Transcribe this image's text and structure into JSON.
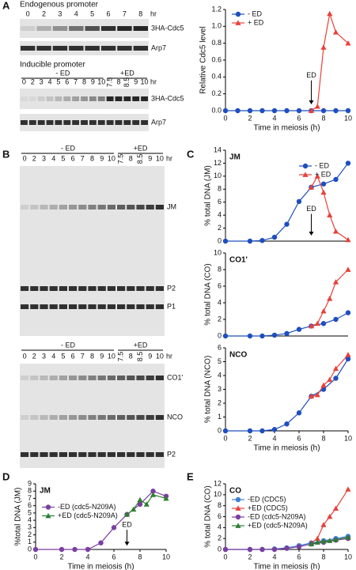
{
  "figure": {
    "panels": [
      "A",
      "B",
      "C",
      "D",
      "E"
    ],
    "gels": [
      {
        "header": "Endogenous promoter",
        "lanes": [
          "0",
          "2",
          "3",
          "4",
          "5",
          "6",
          "7",
          "8"
        ],
        "unit": "hr",
        "labels": [
          "3HA-Cdc5",
          "Arp7"
        ]
      },
      {
        "header": "Inducible promoter",
        "groups": [
          "- ED",
          "+ED"
        ],
        "lanes": [
          "0",
          "2",
          "3",
          "4",
          "5",
          "6",
          "7",
          "8",
          "9",
          "10",
          "7.5",
          "8",
          "8.5",
          "9",
          "10"
        ],
        "unit": "hr",
        "labels": [
          "3HA-Cdc5",
          "Arp7"
        ]
      },
      {
        "groups": [
          "- ED",
          "+ED"
        ],
        "lanes": [
          "0",
          "2",
          "3",
          "4",
          "5",
          "6",
          "7",
          "8",
          "9",
          "10",
          "7.5",
          "8",
          "8.5",
          "9",
          "10"
        ],
        "unit": "hr",
        "labels": [
          "JM",
          "P2",
          "P1"
        ]
      },
      {
        "groups": [
          "- ED",
          "+ED"
        ],
        "lanes": [
          "0",
          "2",
          "3",
          "4",
          "5",
          "6",
          "7",
          "8",
          "9",
          "10",
          "7.5",
          "8",
          "8.5",
          "9",
          "10"
        ],
        "unit": "hr",
        "labels": [
          "CO1'",
          "NCO",
          "P2"
        ]
      }
    ]
  },
  "chart_data": [
    {
      "type": "line",
      "ylabel": "Relative Cdc5 level",
      "xlabel": "Time in meiosis (h)",
      "xlim": [
        0,
        10
      ],
      "xticks": [
        0,
        2,
        4,
        6,
        8,
        10
      ],
      "ylim": [
        0,
        1.2
      ],
      "yticks": [
        {
          "value": 0,
          "label": "0.0"
        },
        {
          "value": 0.2,
          "label": "0.2"
        },
        {
          "value": 0.4,
          "label": "0.4"
        },
        {
          "value": 0.6,
          "label": "0.6"
        },
        {
          "value": 0.8,
          "label": "0.8"
        },
        {
          "value": 1.0,
          "label": "1.0"
        },
        {
          "value": 1.2,
          "label": "1.2"
        }
      ],
      "legend": "upper left",
      "annotation": {
        "text": "ED",
        "x": 7
      },
      "series": [
        {
          "name": "- ED",
          "color": "#1f4fbf",
          "marker": "circle",
          "x": [
            0,
            1,
            2,
            3,
            4,
            5,
            6,
            7,
            8,
            9,
            10
          ],
          "values": [
            0,
            0,
            0,
            0,
            0,
            0,
            0,
            0,
            0,
            0,
            0
          ]
        },
        {
          "name": "+ ED",
          "color": "#e8413a",
          "marker": "triangle",
          "x": [
            7,
            7.5,
            8,
            8.5,
            9,
            10
          ],
          "values": [
            0,
            0.05,
            0.75,
            1.15,
            0.93,
            0.8
          ]
        }
      ]
    },
    {
      "type": "line",
      "title": "JM",
      "ylabel": "% total DNA (JM)",
      "xlim": [
        0,
        10
      ],
      "ylim": [
        0,
        14
      ],
      "yticks": [
        0,
        2,
        4,
        6,
        8,
        10,
        12,
        14
      ],
      "legend": "upper right",
      "annotation": {
        "text": "ED",
        "x": 7
      },
      "series": [
        {
          "name": "- ED",
          "color": "#1f4fbf",
          "marker": "circle",
          "x": [
            0,
            2,
            3,
            4,
            5,
            6,
            7,
            8,
            9,
            10
          ],
          "values": [
            0,
            0,
            0.1,
            0.6,
            2.6,
            6.1,
            8.3,
            8.8,
            9.5,
            12
          ]
        },
        {
          "name": "+ ED",
          "color": "#e8413a",
          "marker": "triangle",
          "x": [
            7,
            7.5,
            8,
            8.5,
            9,
            10
          ],
          "values": [
            8.3,
            10,
            7.5,
            4,
            1.5,
            0.2
          ]
        }
      ]
    },
    {
      "type": "line",
      "title": "CO1'",
      "ylabel": "% total DNA (CO)",
      "xlim": [
        0,
        10
      ],
      "ylim": [
        0,
        10
      ],
      "yticks": [
        0,
        2,
        4,
        6,
        8,
        10
      ],
      "series": [
        {
          "color": "#1f4fbf",
          "marker": "circle",
          "x": [
            0,
            2,
            3,
            4,
            5,
            6,
            7,
            8,
            9,
            10
          ],
          "values": [
            0,
            0,
            0,
            0.1,
            0.3,
            0.8,
            1.2,
            1.5,
            2,
            2.8
          ]
        },
        {
          "color": "#e8413a",
          "marker": "triangle",
          "x": [
            7,
            7.5,
            8,
            8.5,
            9,
            10
          ],
          "values": [
            1.2,
            1.5,
            3,
            4.5,
            6.5,
            8
          ]
        }
      ]
    },
    {
      "type": "line",
      "title": "NCO",
      "ylabel": "% total DNA (NCO)",
      "xlabel": "Time in meiosis (h)",
      "xlim": [
        0,
        10
      ],
      "xticks": [
        0,
        2,
        4,
        6,
        8,
        10
      ],
      "ylim": [
        0,
        6
      ],
      "yticks": [
        0,
        1,
        2,
        3,
        4,
        5,
        6
      ],
      "series": [
        {
          "color": "#1f4fbf",
          "marker": "circle",
          "x": [
            0,
            2,
            3,
            4,
            5,
            6,
            7,
            8,
            9,
            10
          ],
          "values": [
            0,
            0,
            0,
            0.1,
            0.5,
            1.3,
            2.5,
            3,
            3.8,
            5.2
          ]
        },
        {
          "color": "#e8413a",
          "marker": "triangle",
          "x": [
            7,
            7.5,
            8,
            8.5,
            9,
            10
          ],
          "values": [
            2.5,
            2.6,
            3.3,
            3.7,
            4.5,
            5.5
          ]
        }
      ]
    },
    {
      "type": "line",
      "title": "JM",
      "ylabel": "%total DNA (JM)",
      "xlabel": "Time in meiosis (h)",
      "xlim": [
        0,
        10
      ],
      "xticks": [
        0,
        2,
        4,
        6,
        8,
        10
      ],
      "ylim": [
        0,
        9
      ],
      "yticks": [
        0,
        1,
        2,
        3,
        4,
        5,
        6,
        7,
        8,
        9
      ],
      "legend": "middle left",
      "annotation": {
        "text": "ED",
        "x": 7
      },
      "series": [
        {
          "name": "-ED (cdc5-N209A)",
          "color": "#7b3fa0",
          "marker": "circle",
          "x": [
            0,
            2,
            3,
            4,
            5,
            6,
            7,
            8,
            9,
            10
          ],
          "values": [
            0,
            0,
            0,
            0,
            0.9,
            3,
            4.8,
            6.2,
            8,
            7.3
          ]
        },
        {
          "name": "+ED (cdc5-N209A)",
          "color": "#2e7d32",
          "marker": "triangle",
          "x": [
            7,
            7.5,
            8,
            8.5,
            9,
            10
          ],
          "values": [
            4.8,
            5.5,
            6.8,
            6.2,
            7.5,
            7
          ]
        }
      ]
    },
    {
      "type": "line",
      "title": "CO",
      "ylabel": "% total DNA (CO)",
      "xlabel": "Time in meiosis (h)",
      "xlim": [
        0,
        10
      ],
      "xticks": [
        0,
        2,
        4,
        6,
        8,
        10
      ],
      "ylim": [
        0,
        12
      ],
      "yticks": [
        0,
        2,
        4,
        6,
        8,
        10,
        12
      ],
      "legend": "upper left",
      "series": [
        {
          "name": "-ED (CDC5)",
          "color": "#3a7fd5",
          "marker": "circle",
          "x": [
            0,
            2,
            3,
            4,
            5,
            6,
            7,
            8,
            9,
            10
          ],
          "values": [
            0,
            0,
            0,
            0.1,
            0.3,
            0.7,
            1.2,
            1.6,
            2,
            2.4
          ]
        },
        {
          "name": "+ED (CDC5)",
          "color": "#e8413a",
          "marker": "triangle",
          "x": [
            7,
            7.5,
            8,
            8.5,
            9,
            10
          ],
          "values": [
            1.2,
            2,
            4.5,
            6,
            7.5,
            11
          ]
        },
        {
          "name": "-ED (cdc5-N209A)",
          "color": "#7b3fa0",
          "marker": "circle",
          "x": [
            0,
            2,
            3,
            4,
            5,
            6,
            7,
            8,
            9,
            10
          ],
          "values": [
            0,
            0,
            0,
            0,
            0.2,
            0.5,
            1,
            1.3,
            1.7,
            2
          ]
        },
        {
          "name": "+ED (cdc5-N209A)",
          "color": "#2e7d32",
          "marker": "triangle",
          "x": [
            7,
            7.5,
            8,
            8.5,
            9,
            10
          ],
          "values": [
            1,
            1.3,
            1.5,
            1.6,
            1.8,
            2.2
          ]
        }
      ]
    }
  ]
}
